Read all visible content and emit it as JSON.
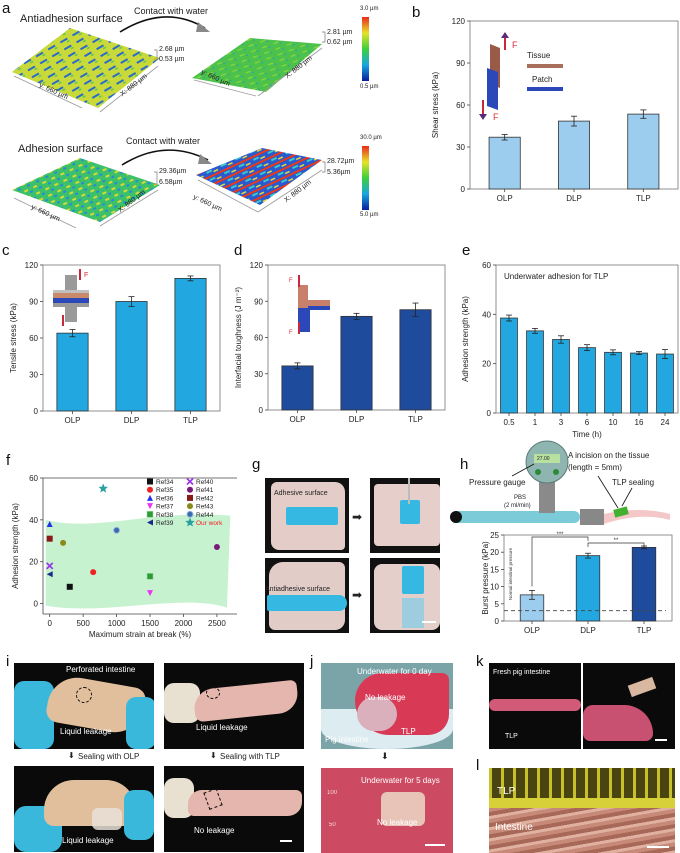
{
  "panel_letters": [
    "a",
    "b",
    "c",
    "d",
    "e",
    "f",
    "g",
    "h",
    "i",
    "j",
    "k",
    "l"
  ],
  "panel_a": {
    "row1": {
      "title": "Antiadhesion surface",
      "arrow_label": "Contact with water",
      "before_range": [
        "2.68 µm",
        "0.53 µm"
      ],
      "after_range": [
        "2.81 µm",
        "0.62 µm"
      ],
      "axis_y": "y: 660 µm",
      "axis_x": "X: 880 µm",
      "colorbar": [
        "3.0 µm",
        "0.5 µm"
      ]
    },
    "row2": {
      "title": "Adhesion surface",
      "arrow_label": "Contact with water",
      "before_range": [
        "29.36µm",
        "6.58µm"
      ],
      "after_range": [
        "28.72µm",
        "5.36µm"
      ],
      "axis_y": "y: 660 µm",
      "axis_x": "X: 880 µm",
      "colorbar": [
        "30.0 µm",
        "5.0 µm"
      ]
    }
  },
  "chart_data": [
    {
      "id": "b",
      "type": "bar",
      "categories": [
        "OLP",
        "DLP",
        "TLP"
      ],
      "values": [
        37,
        48.5,
        53.5
      ],
      "errors": [
        2,
        3.5,
        3
      ],
      "ylabel": "Shear stress (kPa)",
      "ylim": [
        0,
        120
      ],
      "yticks": [
        "0",
        "30",
        "60",
        "90",
        "120"
      ],
      "color": "#9dcdee",
      "inset": {
        "labels": [
          "Tissue",
          "Patch",
          "F",
          "F"
        ]
      }
    },
    {
      "id": "c",
      "type": "bar",
      "categories": [
        "OLP",
        "DLP",
        "TLP"
      ],
      "values": [
        64,
        90,
        109
      ],
      "errors": [
        3,
        4,
        2
      ],
      "ylabel": "Tensile stress (kPa)",
      "ylim": [
        0,
        120
      ],
      "yticks": [
        "0",
        "30",
        "60",
        "90",
        "120"
      ],
      "color": "#22a7e0",
      "inset": {
        "labels": [
          "F"
        ]
      }
    },
    {
      "id": "d",
      "type": "bar",
      "categories": [
        "OLP",
        "DLP",
        "TLP"
      ],
      "values": [
        36.5,
        77.5,
        83
      ],
      "errors": [
        2.5,
        2.5,
        5.5
      ],
      "ylabel": "Interfacial toughness (J m⁻²)",
      "ylim": [
        0,
        120
      ],
      "yticks": [
        "0",
        "30",
        "60",
        "90",
        "120"
      ],
      "color": "#1e4b9c",
      "inset": {
        "labels": [
          "F",
          "F"
        ]
      }
    },
    {
      "id": "e",
      "type": "bar",
      "title": "Underwater adhesion for TLP",
      "categories": [
        "0.5",
        "1",
        "3",
        "6",
        "10",
        "16",
        "24"
      ],
      "values": [
        38.5,
        33.3,
        29.8,
        26.5,
        24.6,
        24.3,
        23.9
      ],
      "errors": [
        1.2,
        1.0,
        1.5,
        1.2,
        1.0,
        0.6,
        1.8
      ],
      "xlabel": "Time (h)",
      "ylabel": "Adhesion strength (kPa)",
      "ylim": [
        0,
        60
      ],
      "yticks": [
        "0",
        "20",
        "40",
        "60"
      ],
      "color": "#22a7e0"
    },
    {
      "id": "f",
      "type": "scatter",
      "xlabel": "Maximum strain at break (%)",
      "ylabel": "Adhesion strength (kPa)",
      "xlim": [
        -100,
        2800
      ],
      "ylim": [
        -5,
        60
      ],
      "xticks": [
        "0",
        "500",
        "1000",
        "1500",
        "2000",
        "2500"
      ],
      "yticks": [
        "0",
        "20",
        "40",
        "60"
      ],
      "legend_position": "top-right",
      "points": [
        {
          "name": "Ref34",
          "x": 300,
          "y": 8,
          "color": "#111111",
          "marker": "square"
        },
        {
          "name": "Ref35",
          "x": 650,
          "y": 15,
          "color": "#ee2222",
          "marker": "circle"
        },
        {
          "name": "Ref36",
          "x": 0,
          "y": 38,
          "color": "#2233ee",
          "marker": "triangle-up"
        },
        {
          "name": "Ref37",
          "x": 1500,
          "y": 5,
          "color": "#ee33ee",
          "marker": "triangle-down"
        },
        {
          "name": "Ref38",
          "x": 1500,
          "y": 13,
          "color": "#2e9a3a",
          "marker": "square-x"
        },
        {
          "name": "Ref39",
          "x": 0,
          "y": 14,
          "color": "#1a2a8a",
          "marker": "triangle-left"
        },
        {
          "name": "Ref40",
          "x": 0,
          "y": 18,
          "color": "#9b33ee",
          "marker": "x"
        },
        {
          "name": "Ref41",
          "x": 2500,
          "y": 27,
          "color": "#7a1a7a",
          "marker": "circle"
        },
        {
          "name": "Ref42",
          "x": 0,
          "y": 31,
          "color": "#8a1a1a",
          "marker": "square"
        },
        {
          "name": "Ref43",
          "x": 200,
          "y": 29,
          "color": "#8a8a1a",
          "marker": "circle"
        },
        {
          "name": "Ref44",
          "x": 1000,
          "y": 35,
          "color": "#3a6ab0",
          "marker": "circle-half"
        },
        {
          "name": "Our work",
          "x": 800,
          "y": 55,
          "color": "#2aa0a0",
          "marker": "star"
        }
      ],
      "legend_highlight_color": "#ee2222",
      "region_color": "#bdf0c8"
    },
    {
      "id": "h",
      "type": "bar",
      "categories": [
        "OLP",
        "DLP",
        "TLP"
      ],
      "values": [
        7.6,
        19.0,
        21.4
      ],
      "errors": [
        1.3,
        0.7,
        0.4
      ],
      "colors": [
        "#9dcdee",
        "#22a7e0",
        "#1e4b9c"
      ],
      "ylabel": "Burst pressure (kPa)",
      "ylim": [
        0,
        25
      ],
      "yticks": [
        "0",
        "5",
        "10",
        "15",
        "20",
        "25"
      ],
      "reference_line": {
        "y": 3,
        "label": "Normal intestinal pressure"
      },
      "significance": [
        {
          "pair": [
            "OLP",
            "DLP"
          ],
          "label": "***"
        },
        {
          "pair": [
            "DLP",
            "TLP"
          ],
          "label": "**"
        }
      ]
    }
  ],
  "panel_g": {
    "top_label": "Adhesive surface",
    "bottom_label": "Antiadhesive surface"
  },
  "panel_h": {
    "gauge_label": "Pressure gauge",
    "gauge_reading": "27.00",
    "flow_label_1": "PBS",
    "flow_label_2": "(2 ml/min)",
    "incision_label_1": "A incision on the tissue",
    "incision_label_2": "(length = 5mm)",
    "sealing_label": "TLP sealing"
  },
  "panel_i": {
    "tl_label_1": "Perforated intestine",
    "tl_label_2": "Liquid leakage",
    "tr_label": "Liquid leakage",
    "arrow_left": "Sealing with OLP",
    "arrow_right": "Sealing with TLP",
    "bl_label": "Liquid leakage",
    "br_label": "No leakage"
  },
  "panel_j": {
    "top_title": "Underwater  for 0 day",
    "top_center": "No leakage",
    "top_label_1": "Pig intestine",
    "top_label_2": "TLP",
    "bottom_title": "Underwater for 5 days",
    "bottom_center": "No leakage",
    "beaker_marks": [
      "100",
      "50"
    ]
  },
  "panel_k": {
    "label_1": "Fresh pig intestine",
    "label_2": "TLP"
  },
  "panel_l": {
    "label_1": "TLP",
    "label_2": "Intestine"
  }
}
